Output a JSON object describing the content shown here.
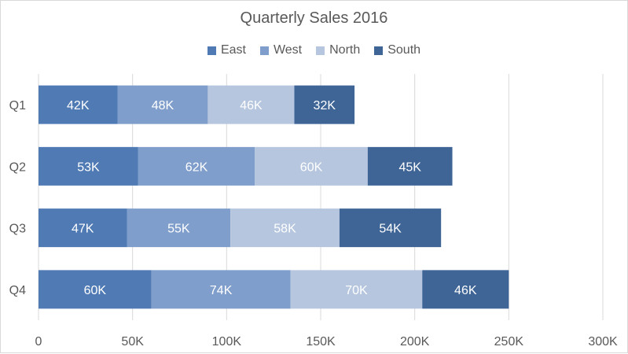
{
  "chart_data": {
    "type": "bar",
    "orientation": "horizontal",
    "stacked": true,
    "title": "Quarterly Sales 2016",
    "categories": [
      "Q1",
      "Q2",
      "Q3",
      "Q4"
    ],
    "series": [
      {
        "name": "East",
        "color": "#4f7ab4",
        "values": [
          42,
          53,
          47,
          60
        ],
        "labels": [
          "42K",
          "53K",
          "47K",
          "60K"
        ]
      },
      {
        "name": "West",
        "color": "#7f9ecb",
        "values": [
          48,
          62,
          55,
          74
        ],
        "labels": [
          "48K",
          "62K",
          "55K",
          "74K"
        ]
      },
      {
        "name": "North",
        "color": "#b6c6df",
        "values": [
          46,
          60,
          58,
          70
        ],
        "labels": [
          "46K",
          "60K",
          "58K",
          "70K"
        ]
      },
      {
        "name": "South",
        "color": "#3f6597",
        "values": [
          32,
          45,
          54,
          46
        ],
        "labels": [
          "32K",
          "45K",
          "54K",
          "46K"
        ]
      }
    ],
    "xlim": [
      0,
      300
    ],
    "xticks": [
      0,
      50,
      100,
      150,
      200,
      250,
      300
    ],
    "xtick_labels": [
      "0",
      "50K",
      "100K",
      "150K",
      "200K",
      "250K",
      "300K"
    ],
    "grid": true,
    "legend_position": "top"
  }
}
